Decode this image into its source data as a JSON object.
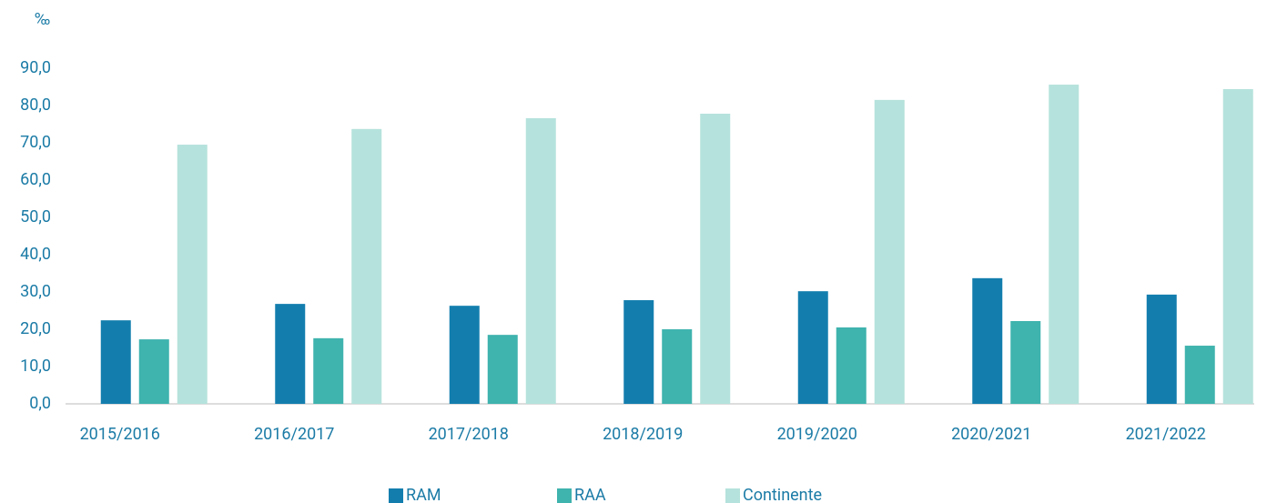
{
  "chart_data": {
    "type": "bar",
    "y_axis_label": "‰",
    "categories": [
      "2015/2016",
      "2016/2017",
      "2017/2018",
      "2018/2019",
      "2019/2020",
      "2020/2021",
      "2021/2022"
    ],
    "series": [
      {
        "name": "RAM",
        "color": "#137eae",
        "values": [
          22.4,
          26.8,
          26.3,
          27.8,
          30.2,
          33.7,
          29.3
        ]
      },
      {
        "name": "RAA",
        "color": "#3fb3ae",
        "values": [
          17.3,
          17.6,
          18.5,
          20.0,
          20.5,
          22.2,
          15.6
        ]
      },
      {
        "name": "Continente",
        "color": "#b5e2dc",
        "values": [
          69.5,
          73.7,
          76.6,
          77.8,
          81.5,
          85.6,
          84.4
        ]
      }
    ],
    "ylim": [
      0,
      90
    ],
    "yticks": [
      {
        "value": 0,
        "label": "0,0"
      },
      {
        "value": 10,
        "label": "10,0"
      },
      {
        "value": 20,
        "label": "20,0"
      },
      {
        "value": 30,
        "label": "30,0"
      },
      {
        "value": 40,
        "label": "40,0"
      },
      {
        "value": 50,
        "label": "50,0"
      },
      {
        "value": 60,
        "label": "60,0"
      },
      {
        "value": 70,
        "label": "70,0"
      },
      {
        "value": 80,
        "label": "80,0"
      },
      {
        "value": 90,
        "label": "90,0"
      }
    ],
    "legend": "bottom"
  }
}
